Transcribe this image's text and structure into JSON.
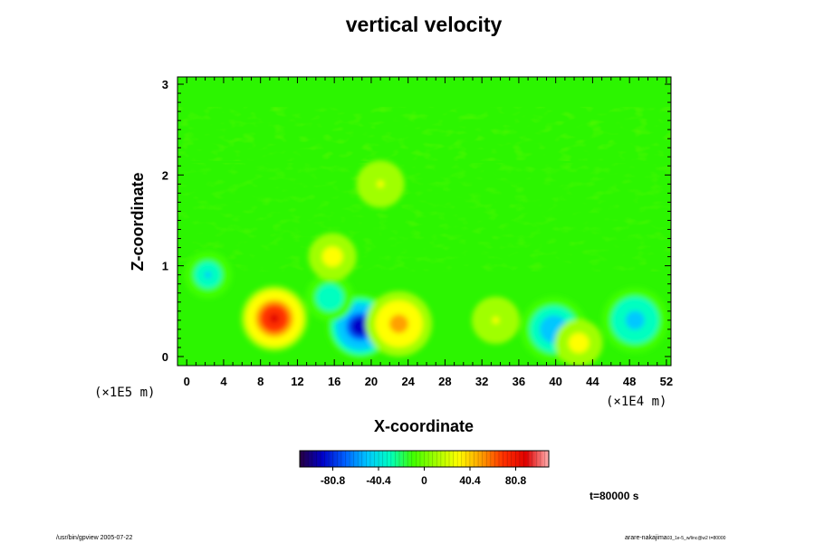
{
  "chart_data": {
    "type": "heatmap",
    "title": "vertical velocity",
    "xlabel": "X-coordinate",
    "ylabel": "Z-coordinate",
    "x_unit": "(×1E4 m)",
    "y_unit": "(×1E5 m)",
    "xlim": [
      -1,
      52.5
    ],
    "ylim": [
      -0.1,
      3.08
    ],
    "x_ticks": [
      "0",
      "4",
      "8",
      "12",
      "16",
      "20",
      "24",
      "28",
      "32",
      "36",
      "40",
      "44",
      "48",
      "52"
    ],
    "x_tick_values": [
      0,
      4,
      8,
      12,
      16,
      20,
      24,
      28,
      32,
      36,
      40,
      44,
      48,
      52
    ],
    "y_ticks": [
      "0",
      "1",
      "2",
      "3"
    ],
    "y_tick_values": [
      0,
      1,
      2,
      3
    ],
    "colorbar": {
      "labels": [
        "-80.8",
        "-40.4",
        "0",
        "40.4",
        "80.8"
      ],
      "values": [
        -80.8,
        -40.4,
        0,
        40.4,
        80.8
      ],
      "range": [
        -110,
        110
      ],
      "colors": [
        "#280040",
        "#0000c8",
        "#0060ff",
        "#00c8ff",
        "#00ffc0",
        "#40ff00",
        "#a0ff00",
        "#ffff00",
        "#ffa000",
        "#ff3000",
        "#e00000",
        "#ffb0b0"
      ]
    },
    "features": [
      {
        "x": 9.5,
        "z": 0.42,
        "value": 85,
        "kind": "updraft"
      },
      {
        "x": 18.8,
        "z": 0.33,
        "value": -95,
        "kind": "downdraft"
      },
      {
        "x": 23.0,
        "z": 0.36,
        "value": 55,
        "kind": "updraft"
      },
      {
        "x": 33.5,
        "z": 0.4,
        "value": 20,
        "kind": "updraft"
      },
      {
        "x": 39.8,
        "z": 0.3,
        "value": -60,
        "kind": "downdraft"
      },
      {
        "x": 42.5,
        "z": 0.15,
        "value": 30,
        "kind": "updraft"
      },
      {
        "x": 48.6,
        "z": 0.4,
        "value": -55,
        "kind": "downdraft"
      },
      {
        "x": 15.5,
        "z": 0.65,
        "value": -40,
        "kind": "downdraft"
      },
      {
        "x": 15.8,
        "z": 1.1,
        "value": 30,
        "kind": "updraft"
      },
      {
        "x": 2.3,
        "z": 0.9,
        "value": -45,
        "kind": "downdraft"
      },
      {
        "x": 21.0,
        "z": 1.9,
        "value": 20,
        "kind": "updraft"
      }
    ]
  },
  "timestamp": "t=80000 s",
  "footer_left": "/usr/bin/gpview 2005-07-22",
  "footer_right_main": "arare-nakajima",
  "footer_right_sub": "03_1e-5_w/linc@w2 t=80000"
}
